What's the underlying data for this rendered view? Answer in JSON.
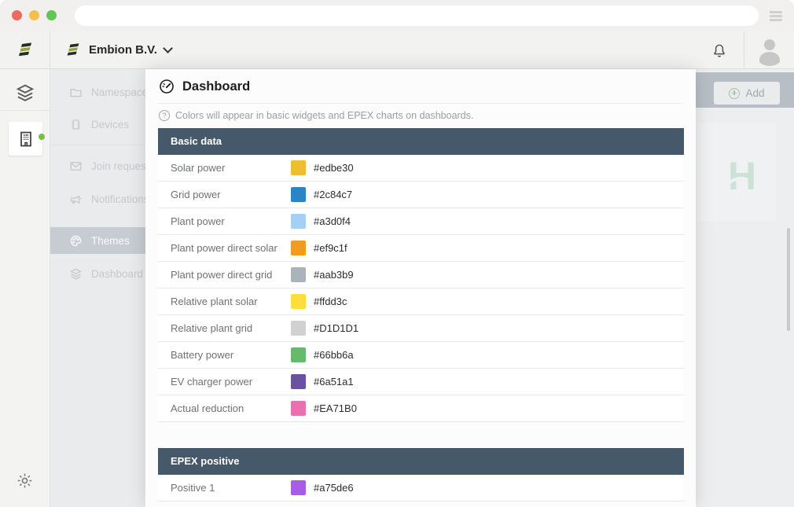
{
  "browser": {
    "url_value": "",
    "traffic_lights": [
      "close",
      "minimize",
      "maximize"
    ]
  },
  "header": {
    "org_name": "Embion B.V."
  },
  "nav": {
    "items": [
      {
        "label": "Namespaces",
        "icon": "folder-icon",
        "selected": false
      },
      {
        "label": "Devices",
        "icon": "chip-icon",
        "selected": false
      },
      {
        "label": "Join requests",
        "icon": "envelope-icon",
        "selected": false
      },
      {
        "label": "Notifications",
        "icon": "megaphone-icon",
        "selected": false
      },
      {
        "label": "Themes",
        "icon": "palette-icon",
        "selected": true
      },
      {
        "label": "Dashboard te",
        "icon": "layers-icon",
        "selected": false
      }
    ]
  },
  "page": {
    "add_label": "Add",
    "watermark_letter": "H"
  },
  "modal": {
    "title": "Dashboard",
    "hint": "Colors will appear in basic widgets and EPEX charts on dashboards.",
    "sections": [
      {
        "title": "Basic data",
        "rows": [
          {
            "label": "Solar power",
            "hex": "#edbe30"
          },
          {
            "label": "Grid power",
            "hex": "#2c84c7"
          },
          {
            "label": "Plant power",
            "hex": "#a3d0f4"
          },
          {
            "label": "Plant power direct solar",
            "hex": "#ef9c1f"
          },
          {
            "label": "Plant power direct grid",
            "hex": "#aab3b9"
          },
          {
            "label": "Relative plant solar",
            "hex": "#ffdd3c"
          },
          {
            "label": "Relative plant grid",
            "hex": "#D1D1D1"
          },
          {
            "label": "Battery power",
            "hex": "#66bb6a"
          },
          {
            "label": "EV charger power",
            "hex": "#6a51a1"
          },
          {
            "label": "Actual reduction",
            "hex": "#EA71B0"
          }
        ]
      },
      {
        "title": "EPEX positive",
        "rows": [
          {
            "label": "Positive 1",
            "hex": "#a75de6"
          }
        ]
      }
    ]
  },
  "colors": {
    "section_header_bg": "#46596a",
    "status_dot_green": "#76c043",
    "logo_dark": "#232e20",
    "logo_olive": "#96a43f"
  }
}
